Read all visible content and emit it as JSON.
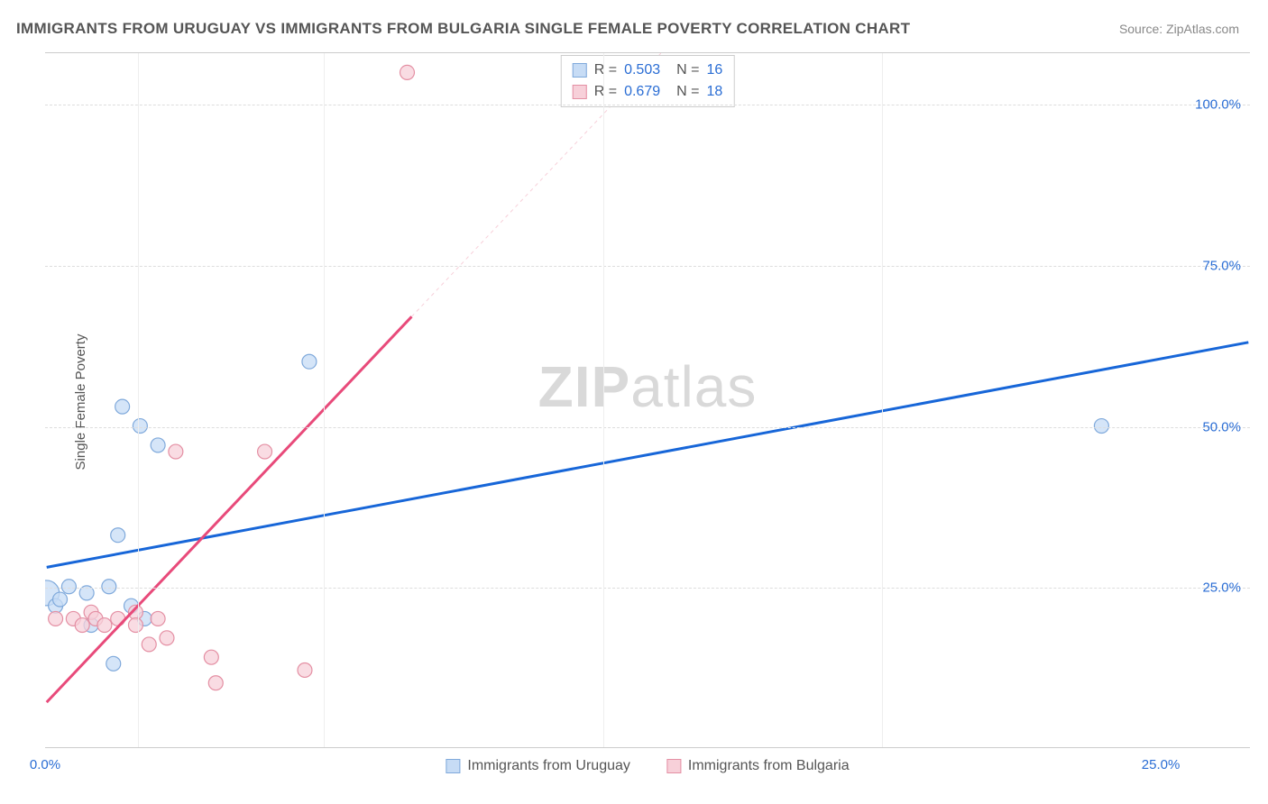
{
  "title": "IMMIGRANTS FROM URUGUAY VS IMMIGRANTS FROM BULGARIA SINGLE FEMALE POVERTY CORRELATION CHART",
  "source": "Source: ZipAtlas.com",
  "ylabel": "Single Female Poverty",
  "watermark_bold": "ZIP",
  "watermark_rest": "atlas",
  "chart": {
    "type": "scatter",
    "xlim": [
      0,
      27
    ],
    "ylim": [
      0,
      108
    ],
    "yticks": [
      {
        "v": 25,
        "label": "25.0%"
      },
      {
        "v": 50,
        "label": "50.0%"
      },
      {
        "v": 75,
        "label": "75.0%"
      },
      {
        "v": 100,
        "label": "100.0%"
      }
    ],
    "xticks": [
      {
        "v": 0,
        "label": "0.0%"
      },
      {
        "v": 25,
        "label": "25.0%"
      }
    ],
    "xtick_marks": [
      2.08,
      6.25,
      12.5,
      18.75
    ],
    "grid_color": "#dddddd",
    "background_color": "#ffffff",
    "series": [
      {
        "name": "Immigrants from Uruguay",
        "color_fill": "#c7dcf5",
        "color_stroke": "#7fa9db",
        "marker_r": 8,
        "R_label": "R =",
        "R": "0.503",
        "N_label": "N =",
        "N": "16",
        "trend": {
          "color": "#1766d8",
          "width": 3,
          "x1": 0,
          "y1": 28,
          "x2": 27,
          "y2": 63
        },
        "points": [
          {
            "x": 0.0,
            "y": 24,
            "r": 14
          },
          {
            "x": 0.2,
            "y": 22,
            "r": 8
          },
          {
            "x": 0.5,
            "y": 25,
            "r": 8
          },
          {
            "x": 0.9,
            "y": 24,
            "r": 8
          },
          {
            "x": 1.0,
            "y": 19,
            "r": 8
          },
          {
            "x": 1.4,
            "y": 25,
            "r": 8
          },
          {
            "x": 1.5,
            "y": 13,
            "r": 8
          },
          {
            "x": 1.6,
            "y": 33,
            "r": 8
          },
          {
            "x": 1.9,
            "y": 22,
            "r": 8
          },
          {
            "x": 2.1,
            "y": 50,
            "r": 8
          },
          {
            "x": 2.2,
            "y": 20,
            "r": 8
          },
          {
            "x": 1.7,
            "y": 53,
            "r": 8
          },
          {
            "x": 2.5,
            "y": 47,
            "r": 8
          },
          {
            "x": 5.9,
            "y": 60,
            "r": 8
          },
          {
            "x": 23.7,
            "y": 50,
            "r": 8
          },
          {
            "x": 0.3,
            "y": 23,
            "r": 8
          }
        ]
      },
      {
        "name": "Immigrants from Bulgaria",
        "color_fill": "#f7d0d9",
        "color_stroke": "#e48fa3",
        "marker_r": 8,
        "R_label": "R =",
        "R": "0.679",
        "N_label": "N =",
        "N": "18",
        "trend": {
          "color": "#e84a7a",
          "width": 3,
          "x1": 0,
          "y1": 7,
          "x2": 8.2,
          "y2": 67
        },
        "trend_extension": {
          "color": "#f7cfd9",
          "width": 1,
          "dash": "4,4",
          "x1": 8.2,
          "y1": 67,
          "x2": 13.8,
          "y2": 108
        },
        "points": [
          {
            "x": 0.2,
            "y": 20,
            "r": 8
          },
          {
            "x": 0.6,
            "y": 20,
            "r": 8
          },
          {
            "x": 0.8,
            "y": 19,
            "r": 8
          },
          {
            "x": 1.0,
            "y": 21,
            "r": 8
          },
          {
            "x": 1.1,
            "y": 20,
            "r": 8
          },
          {
            "x": 1.3,
            "y": 19,
            "r": 8
          },
          {
            "x": 1.6,
            "y": 20,
            "r": 8
          },
          {
            "x": 2.0,
            "y": 21,
            "r": 8
          },
          {
            "x": 2.0,
            "y": 19,
            "r": 8
          },
          {
            "x": 2.3,
            "y": 16,
            "r": 8
          },
          {
            "x": 2.5,
            "y": 20,
            "r": 8
          },
          {
            "x": 2.7,
            "y": 17,
            "r": 8
          },
          {
            "x": 2.9,
            "y": 46,
            "r": 8
          },
          {
            "x": 3.8,
            "y": 10,
            "r": 8
          },
          {
            "x": 3.7,
            "y": 14,
            "r": 8
          },
          {
            "x": 4.9,
            "y": 46,
            "r": 8
          },
          {
            "x": 5.8,
            "y": 12,
            "r": 8
          },
          {
            "x": 8.1,
            "y": 105,
            "r": 8
          }
        ]
      }
    ]
  }
}
